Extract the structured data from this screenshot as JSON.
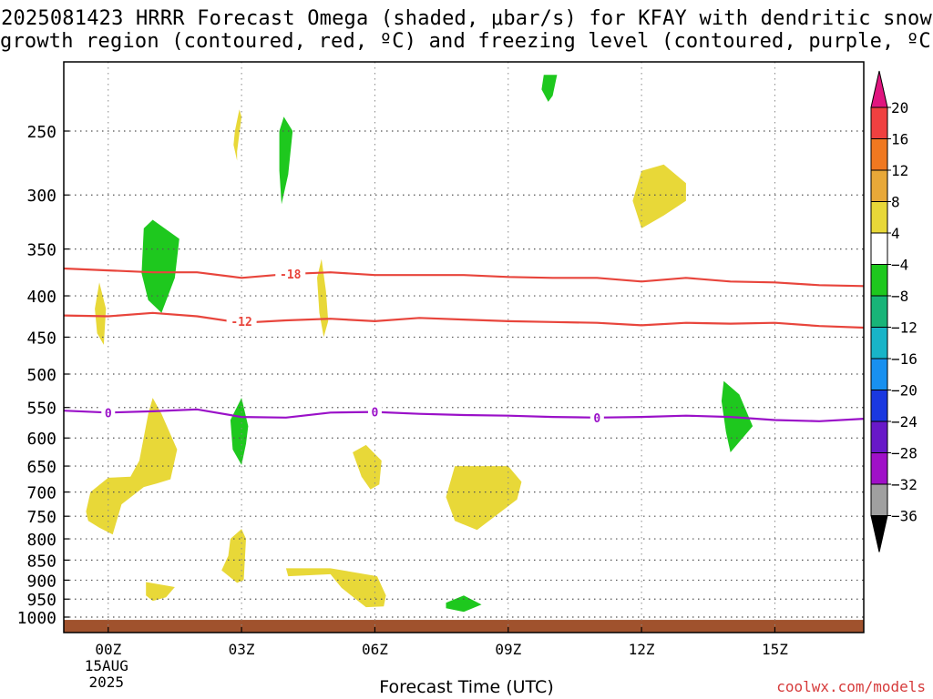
{
  "title_line1": "2025081423 HRRR Forecast Omega (shaded, μbar/s) for KFAY with dendritic snow",
  "title_line2": "growth region (contoured, red, ºC) and freezing level (contoured, purple, ºC)",
  "credit": "coolwx.com/models",
  "chart_data": {
    "type": "time-height cross section",
    "xlabel": "Forecast Time (UTC)",
    "ylabel": "",
    "x_ticks": [
      {
        "hour": 0,
        "label": "00Z",
        "sub": [
          "15AUG",
          "2025"
        ]
      },
      {
        "hour": 3,
        "label": "03Z"
      },
      {
        "hour": 6,
        "label": "06Z"
      },
      {
        "hour": 9,
        "label": "09Z"
      },
      {
        "hour": 12,
        "label": "12Z"
      },
      {
        "hour": 15,
        "label": "15Z"
      }
    ],
    "xlim_hours": [
      -1,
      17
    ],
    "y_scale": "log",
    "ylim_hPa": [
      1010,
      200
    ],
    "y_ticks": [
      250,
      300,
      350,
      400,
      450,
      500,
      550,
      600,
      650,
      700,
      750,
      800,
      850,
      900,
      950,
      1000
    ],
    "grid": true,
    "colorbar": {
      "labels": [
        "20",
        "16",
        "12",
        "8",
        "4",
        "−4",
        "−8",
        "−12",
        "−16",
        "−20",
        "−24",
        "−28",
        "−32",
        "−36"
      ],
      "colors": [
        "#e0157f",
        "#f04040",
        "#f07820",
        "#e8a838",
        "#e8d838",
        "#ffffff",
        "#1ec81e",
        "#18b478",
        "#18b4c8",
        "#1890f0",
        "#1a38e0",
        "#6818c8",
        "#a010c8",
        "#a0a0a0",
        "#000000"
      ]
    },
    "contours": [
      {
        "name": "dendritic",
        "color": "#e8453c",
        "label_value": "-18",
        "label_at": [
          [
            4.1,
            376
          ]
        ],
        "points": [
          [
            -1,
            370
          ],
          [
            0,
            372
          ],
          [
            1,
            374
          ],
          [
            2,
            374
          ],
          [
            3,
            380
          ],
          [
            4,
            376
          ],
          [
            5,
            374
          ],
          [
            6,
            377
          ],
          [
            7,
            377
          ],
          [
            8,
            377
          ],
          [
            9,
            379
          ],
          [
            10,
            380
          ],
          [
            11,
            380
          ],
          [
            12,
            384
          ],
          [
            13,
            380
          ],
          [
            14,
            384
          ],
          [
            15,
            385
          ],
          [
            16,
            388
          ],
          [
            17,
            389
          ]
        ]
      },
      {
        "name": "dendritic",
        "color": "#e8453c",
        "label_value": "-12",
        "label_at": [
          [
            3,
            430
          ]
        ],
        "points": [
          [
            -1,
            423
          ],
          [
            0,
            424
          ],
          [
            1,
            420
          ],
          [
            2,
            424
          ],
          [
            3,
            432
          ],
          [
            4,
            429
          ],
          [
            5,
            427
          ],
          [
            6,
            430
          ],
          [
            7,
            426
          ],
          [
            8,
            428
          ],
          [
            9,
            430
          ],
          [
            10,
            431
          ],
          [
            11,
            432
          ],
          [
            12,
            435
          ],
          [
            13,
            432
          ],
          [
            14,
            433
          ],
          [
            15,
            432
          ],
          [
            16,
            436
          ],
          [
            17,
            438
          ]
        ]
      },
      {
        "name": "freezing",
        "color": "#9a10c8",
        "label_value": "0",
        "label_at": [
          [
            0,
            558
          ],
          [
            6,
            557
          ],
          [
            11,
            566
          ]
        ],
        "points": [
          [
            -1,
            555
          ],
          [
            0,
            558
          ],
          [
            1,
            556
          ],
          [
            2,
            553
          ],
          [
            3,
            565
          ],
          [
            4,
            566
          ],
          [
            5,
            558
          ],
          [
            6,
            557
          ],
          [
            7,
            560
          ],
          [
            8,
            562
          ],
          [
            9,
            563
          ],
          [
            10,
            565
          ],
          [
            11,
            566
          ],
          [
            12,
            565
          ],
          [
            13,
            563
          ],
          [
            14,
            565
          ],
          [
            15,
            570
          ],
          [
            16,
            572
          ],
          [
            17,
            568
          ]
        ]
      }
    ],
    "omega_regions": [
      {
        "color": "#e8d838",
        "points": [
          [
            -0.5,
            740
          ],
          [
            -0.4,
            700
          ],
          [
            0,
            672
          ],
          [
            0.5,
            670
          ],
          [
            0.7,
            640
          ],
          [
            0.9,
            560
          ],
          [
            1,
            535
          ],
          [
            1.2,
            560
          ],
          [
            1.55,
            620
          ],
          [
            1.4,
            675
          ],
          [
            1.1,
            683
          ],
          [
            0.8,
            690
          ],
          [
            0.3,
            725
          ],
          [
            0.1,
            790
          ],
          [
            -0.2,
            775
          ],
          [
            -0.45,
            760
          ]
        ]
      },
      {
        "color": "#e8d838",
        "points": [
          [
            -0.2,
            385
          ],
          [
            -0.05,
            415
          ],
          [
            -0.1,
            460
          ],
          [
            -0.25,
            445
          ],
          [
            -0.3,
            415
          ]
        ]
      },
      {
        "color": "#e8d838",
        "points": [
          [
            2.9,
            265
          ],
          [
            3.0,
            240
          ],
          [
            2.95,
            235
          ],
          [
            2.85,
            250
          ],
          [
            2.82,
            260
          ],
          [
            2.9,
            272
          ]
        ]
      },
      {
        "color": "#e8d838",
        "points": [
          [
            4.8,
            360
          ],
          [
            4.9,
            395
          ],
          [
            4.95,
            430
          ],
          [
            4.85,
            450
          ],
          [
            4.75,
            420
          ],
          [
            4.7,
            380
          ]
        ]
      },
      {
        "color": "#e8d838",
        "points": [
          [
            2.75,
            800
          ],
          [
            3.0,
            778
          ],
          [
            3.1,
            800
          ],
          [
            3.05,
            900
          ],
          [
            2.9,
            907
          ],
          [
            2.55,
            875
          ],
          [
            2.7,
            840
          ]
        ]
      },
      {
        "color": "#e8d838",
        "points": [
          [
            0.85,
            905
          ],
          [
            1.5,
            918
          ],
          [
            1.3,
            945
          ],
          [
            1.0,
            955
          ],
          [
            0.85,
            940
          ]
        ]
      },
      {
        "color": "#e8d838",
        "points": [
          [
            4.0,
            870
          ],
          [
            5.0,
            870
          ],
          [
            6.05,
            890
          ],
          [
            6.25,
            940
          ],
          [
            6.2,
            970
          ],
          [
            5.8,
            972
          ],
          [
            5.25,
            920
          ],
          [
            5.0,
            885
          ],
          [
            4.05,
            890
          ]
        ]
      },
      {
        "color": "#e8d838",
        "points": [
          [
            5.5,
            625
          ],
          [
            5.8,
            612
          ],
          [
            6.15,
            640
          ],
          [
            6.1,
            685
          ],
          [
            5.9,
            695
          ],
          [
            5.7,
            670
          ]
        ]
      },
      {
        "color": "#e8d838",
        "points": [
          [
            7.8,
            650
          ],
          [
            9.0,
            650
          ],
          [
            9.3,
            680
          ],
          [
            9.2,
            715
          ],
          [
            8.3,
            780
          ],
          [
            7.8,
            760
          ],
          [
            7.6,
            710
          ]
        ]
      },
      {
        "color": "#e8d838",
        "points": [
          [
            12.0,
            280
          ],
          [
            12.5,
            275
          ],
          [
            13.0,
            290
          ],
          [
            13.0,
            305
          ],
          [
            12.5,
            318
          ],
          [
            12.0,
            330
          ],
          [
            11.8,
            305
          ]
        ]
      },
      {
        "color": "#1ec81e",
        "points": [
          [
            0.8,
            330
          ],
          [
            1.0,
            322
          ],
          [
            1.6,
            340
          ],
          [
            1.5,
            380
          ],
          [
            1.2,
            420
          ],
          [
            0.9,
            405
          ],
          [
            0.75,
            375
          ]
        ]
      },
      {
        "color": "#1ec81e",
        "points": [
          [
            3.95,
            240
          ],
          [
            4.15,
            250
          ],
          [
            4.05,
            283
          ],
          [
            3.9,
            308
          ],
          [
            3.85,
            280
          ],
          [
            3.85,
            250
          ]
        ]
      },
      {
        "color": "#1ec81e",
        "points": [
          [
            2.75,
            570
          ],
          [
            3.0,
            535
          ],
          [
            3.15,
            580
          ],
          [
            3.1,
            610
          ],
          [
            3.0,
            648
          ],
          [
            2.8,
            620
          ]
        ]
      },
      {
        "color": "#1ec81e",
        "points": [
          [
            9.8,
            213
          ],
          [
            10.1,
            213
          ],
          [
            10.0,
            226
          ],
          [
            9.9,
            230
          ],
          [
            9.75,
            222
          ]
        ]
      },
      {
        "color": "#1ec81e",
        "points": [
          [
            13.85,
            510
          ],
          [
            14.2,
            530
          ],
          [
            14.5,
            580
          ],
          [
            14.0,
            625
          ],
          [
            13.9,
            590
          ],
          [
            13.8,
            540
          ]
        ]
      },
      {
        "color": "#1ec81e",
        "points": [
          [
            7.6,
            960
          ],
          [
            8.0,
            940
          ],
          [
            8.4,
            965
          ],
          [
            8.0,
            985
          ],
          [
            7.6,
            975
          ]
        ]
      }
    ],
    "ground_color": "#a0522d"
  }
}
